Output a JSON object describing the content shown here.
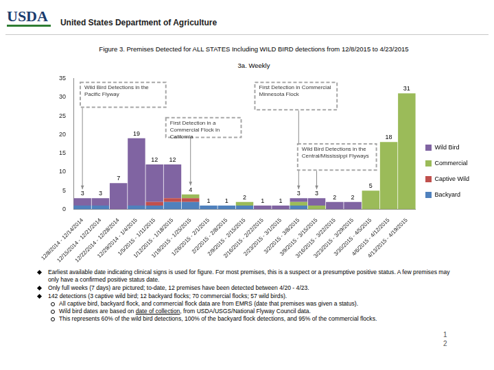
{
  "header": {
    "logo": "USDA",
    "agency": "United States Department of Agriculture"
  },
  "chart_data": {
    "type": "bar",
    "title": "Figure 3. Premises Detected for ALL STATES Including WILD BIRD detections from 12/8/2015 to 4/23/2015",
    "subtitle": "3a. Weekly",
    "categories": [
      "12/8/2014 - 12/14/2014",
      "12/15/2014 - 12/21/2014",
      "12/22/2014 - 12/28/2014",
      "12/29/2014 - 1/4/2015",
      "1/5/2015 - 1/11/2015",
      "1/12/2015 - 1/18/2015",
      "1/19/2015 - 1/25/2015",
      "1/26/2015 - 2/1/2015",
      "2/2/2015 - 2/8/2015",
      "2/9/2015 - 2/15/2015",
      "2/16/2015 - 2/22/2015",
      "2/23/2015 - 3/1/2015",
      "3/2/2015 - 3/8/2015",
      "3/9/2015 - 3/15/2015",
      "3/16/2015 - 3/22/2015",
      "3/23/2015 - 3/29/2015",
      "3/30/2015 - 4/5/2015",
      "4/6/2015 - 4/12/2015",
      "4/13/2015 - 4/19/2015"
    ],
    "series": [
      {
        "name": "Backyard",
        "color": "#4f81bd",
        "values": [
          1,
          1,
          0,
          1,
          1,
          2,
          2,
          1,
          1,
          1,
          0,
          0,
          1,
          0,
          0,
          0,
          0,
          0,
          0
        ]
      },
      {
        "name": "Captive Wild",
        "color": "#c0504d",
        "values": [
          0,
          0,
          0,
          0,
          1,
          1,
          1,
          0,
          0,
          0,
          0,
          0,
          0,
          0,
          0,
          0,
          0,
          0,
          0
        ]
      },
      {
        "name": "Commercial",
        "color": "#9bbb59",
        "values": [
          0,
          0,
          0,
          0,
          0,
          0,
          1,
          0,
          0,
          1,
          0,
          0,
          1,
          1,
          0,
          0,
          5,
          18,
          31
        ]
      },
      {
        "name": "Wild Bird",
        "color": "#8064a2",
        "values": [
          2,
          2,
          7,
          18,
          10,
          9,
          0,
          0,
          0,
          0,
          1,
          1,
          1,
          2,
          2,
          2,
          0,
          0,
          0
        ]
      }
    ],
    "totals": [
      3,
      3,
      7,
      19,
      12,
      12,
      4,
      1,
      1,
      2,
      1,
      1,
      3,
      3,
      2,
      2,
      5,
      18,
      31
    ],
    "annotations": [
      {
        "text": "Wild Bird Detections in the Pacific Flyway",
        "category": "12/8/2014 - 12/14/2014"
      },
      {
        "text": "First Detection in a Commercial Flock in California",
        "category": "1/19/2015 - 1/25/2015"
      },
      {
        "text": "First Detection in Commercial Minnesota Flock",
        "category": "3/2/2015 - 3/8/2015"
      },
      {
        "text": "Wild Bird Detections in the Central/Mississippi Flyways",
        "category": "3/9/2015 - 3/15/2015"
      }
    ],
    "ylim": [
      0,
      35
    ],
    "yticks": [
      0,
      5,
      10,
      15,
      20,
      25,
      30,
      35
    ],
    "stacked": true,
    "grid": false,
    "legend": "right"
  },
  "notes": [
    {
      "text": "Earliest available date indicating clinical signs is used for figure. For most premises, this is a suspect or a presumptive positive status. A few premises may only have a confirmed positive status date.",
      "subnotes": []
    },
    {
      "text": "Only full weeks (7 days) are pictured; to-date, 12 premises have been detected between 4/20 - 4/23.",
      "subnotes": []
    },
    {
      "text": "142 detections (3 captive wild bird; 12 backyard flocks; 70 commercial flocks; 57 wild birds).",
      "subnotes": [
        {
          "text": "All captive bird, backyard flock, and commercial flock data are from EMRS (date that premises was given a status)."
        },
        {
          "text": "Wild bird dates are based on date of collection, from USDA/USGS/National Flyway Council data.",
          "underline": "date of collection"
        },
        {
          "text": "This represents 60% of the wild bird detections, 100% of the backyard flock detections, and 95% of the commercial flocks."
        }
      ]
    }
  ],
  "page_number": [
    "1",
    "2"
  ]
}
